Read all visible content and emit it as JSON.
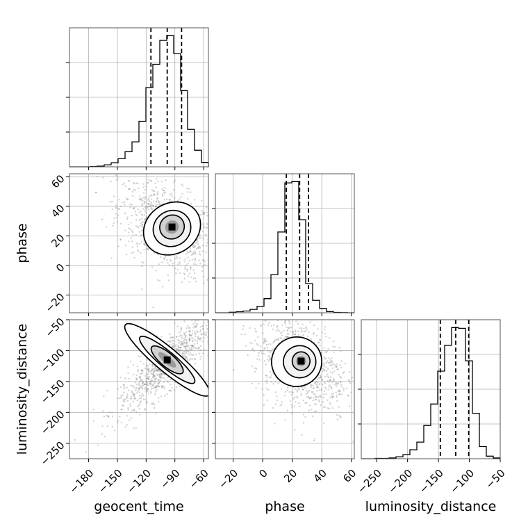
{
  "chart_data": {
    "type": "corner",
    "parameters": [
      "geocent_time",
      "phase",
      "luminosity_distance"
    ],
    "axis_labels": {
      "x": [
        "geocent_time",
        "phase",
        "luminosity_distance"
      ],
      "y": [
        "phase",
        "luminosity_distance"
      ]
    },
    "ranges": {
      "geocent_time": [
        -200,
        -55
      ],
      "phase": [
        -32,
        62
      ],
      "luminosity_distance": [
        -275,
        -50
      ]
    },
    "ticks": {
      "geocent_time": [
        -180,
        -150,
        -120,
        -90,
        -60
      ],
      "phase_x": [
        -20,
        0,
        20,
        40,
        60
      ],
      "phase_y": [
        -20,
        0,
        20,
        40,
        60
      ],
      "luminosity_distance_x": [
        -250,
        -200,
        -150,
        -100,
        -50
      ],
      "luminosity_distance_y": [
        -250,
        -200,
        -150,
        -100,
        -50
      ]
    },
    "tick_labels": {
      "geocent_time": [
        "−180",
        "−150",
        "−120",
        "−90",
        "−60"
      ],
      "phase_x": [
        "−20",
        "0",
        "20",
        "40",
        "60"
      ],
      "phase_y": [
        "−20",
        "0",
        "20",
        "40",
        "60"
      ],
      "luminosity_distance_x": [
        "−250",
        "−200",
        "−150",
        "−100",
        "−50"
      ],
      "luminosity_distance_y": [
        "−250",
        "−200",
        "−150",
        "−100",
        "−50"
      ]
    },
    "quantiles": {
      "geocent_time": [
        -115,
        -98,
        -83
      ],
      "phase": [
        16,
        25,
        31
      ],
      "luminosity_distance": [
        -147,
        -122,
        -101
      ]
    },
    "histograms": {
      "geocent_time": {
        "edges": [
          -200,
          -192.75,
          -185.5,
          -178.25,
          -171,
          -163.75,
          -156.5,
          -149.25,
          -142,
          -134.75,
          -127.5,
          -120.25,
          -113,
          -105.75,
          -98.5,
          -91.25,
          -84,
          -76.75,
          -69.5,
          -62.25,
          -55
        ],
        "counts": [
          0,
          0,
          0,
          1,
          2,
          6,
          12,
          24,
          45,
          74,
          135,
          235,
          304,
          375,
          389,
          336,
          226,
          111,
          49,
          13
        ]
      },
      "phase": {
        "edges": [
          -32,
          -27.3,
          -22.6,
          -17.9,
          -13.2,
          -8.5,
          -3.8,
          0.9,
          5.6,
          10.3,
          15,
          19.7,
          24.4,
          29.1,
          33.8,
          38.5,
          43.2,
          47.9,
          52.6,
          57.3,
          62
        ],
        "counts": [
          0,
          0,
          3,
          6,
          10,
          20,
          38,
          82,
          222,
          470,
          756,
          763,
          541,
          170,
          72,
          25,
          7,
          2,
          1,
          0
        ]
      },
      "luminosity_distance": {
        "edges": [
          -275,
          -263.75,
          -252.5,
          -241.25,
          -230,
          -218.75,
          -207.5,
          -196.25,
          -185,
          -173.75,
          -162.5,
          -151.25,
          -140,
          -128.75,
          -117.5,
          -106.25,
          -95,
          -83.75,
          -72.5,
          -61.25,
          -50
        ],
        "counts": [
          0,
          0,
          1,
          1,
          2,
          5,
          11,
          24,
          45,
          90,
          148,
          237,
          307,
          355,
          353,
          265,
          123,
          33,
          7,
          2
        ]
      }
    },
    "contours": {
      "phase_vs_geocent_time": [
        {
          "cx": -93,
          "cy": 26,
          "sx": 13,
          "sy": 8,
          "tilt": -30
        },
        {
          "cx": -93,
          "cy": 25,
          "sx": 20,
          "sy": 12,
          "tilt": -30
        },
        {
          "cx": -93,
          "cy": 25,
          "sx": 31,
          "sy": 17,
          "tilt": -32
        }
      ],
      "luminosity_distance_vs_geocent_time": [
        {
          "cx": -98,
          "cy": -115,
          "sx": 21,
          "sy": 11,
          "tilt": 40
        },
        {
          "cx": -98,
          "cy": -115,
          "sx": 37,
          "sy": 13,
          "tilt": 40
        },
        {
          "cx": -98,
          "cy": -115,
          "sx": 57,
          "sy": 19,
          "tilt": 40
        }
      ],
      "luminosity_distance_vs_phase": [
        {
          "cx": 26,
          "cy": -117,
          "sx": 6,
          "sy": 15,
          "tilt": 0
        },
        {
          "cx": 25,
          "cy": -118,
          "sx": 11,
          "sy": 26,
          "tilt": -12
        },
        {
          "cx": 23,
          "cy": -118,
          "sx": 17,
          "sy": 40,
          "tilt": -15
        }
      ]
    },
    "grid": true,
    "style": {
      "line_color": "#000000",
      "point_color": "#7f7f7f",
      "grid_color": "#b0b0b0",
      "fill_levels": [
        "#ffffff",
        "#f2f2f2",
        "#d2d2d2",
        "#9a9a9a",
        "#000000"
      ]
    }
  }
}
